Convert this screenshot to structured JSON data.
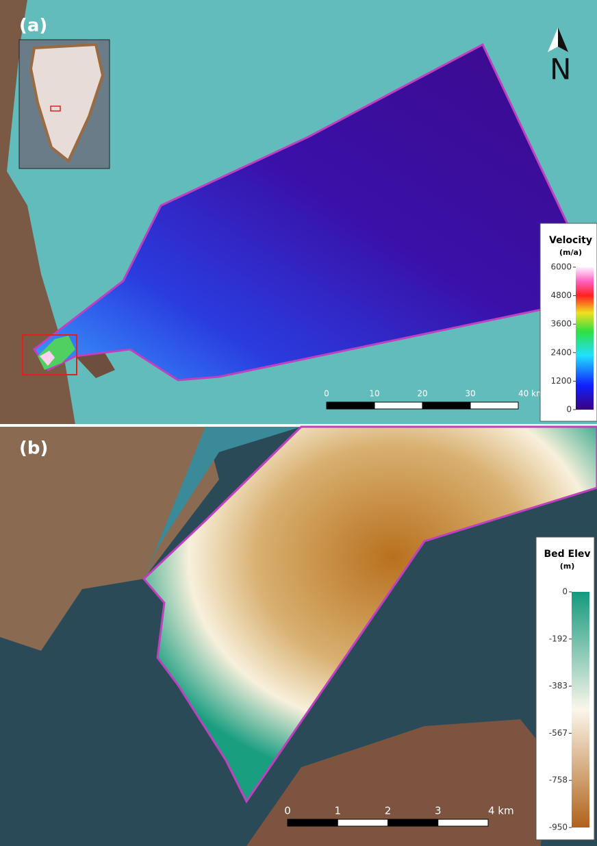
{
  "panels": [
    {
      "label": "(a)",
      "north": "N",
      "legend": {
        "title": "Velocity",
        "unit": "(m/a)",
        "ticks": [
          "6000",
          "4800",
          "3600",
          "2400",
          "1200",
          "0"
        ]
      },
      "scale_bar": {
        "labels": [
          "0",
          "10",
          "20",
          "30",
          "40 km"
        ]
      }
    },
    {
      "label": "(b)",
      "legend": {
        "title": "Bed Elev",
        "unit": "(m)",
        "ticks": [
          "0",
          "-192",
          "-383",
          "-567",
          "-758",
          "-950"
        ]
      },
      "scale_bar": {
        "labels": [
          "0",
          "1",
          "2",
          "3",
          "4 km"
        ]
      }
    }
  ]
}
